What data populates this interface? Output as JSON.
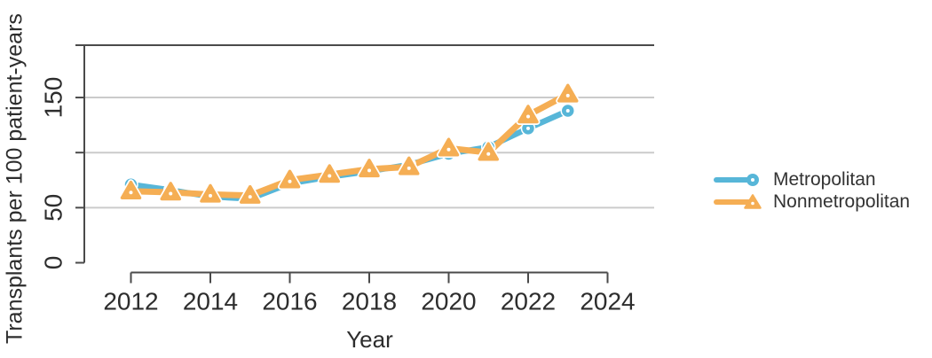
{
  "chart_data": {
    "type": "line",
    "title": "",
    "xlabel": "Year",
    "ylabel": "Transplants per 100 patient-years",
    "x": [
      2012,
      2013,
      2014,
      2015,
      2016,
      2017,
      2018,
      2019,
      2020,
      2021,
      2022,
      2023
    ],
    "series": [
      {
        "name": "Metropolitan",
        "marker": "circle",
        "color": "#57B6D8",
        "values": [
          71,
          66,
          60,
          58,
          72,
          78,
          83,
          89,
          99,
          105,
          122,
          138
        ]
      },
      {
        "name": "Nonmetropolitan",
        "marker": "triangle",
        "color": "#F5AE54",
        "values": [
          65,
          64,
          62,
          61,
          75,
          80,
          85,
          87,
          104,
          100,
          134,
          153
        ]
      }
    ],
    "xticks": [
      2012,
      2014,
      2016,
      2018,
      2020,
      2022,
      2024
    ],
    "yticks": [
      {
        "value": 0,
        "label": "0"
      },
      {
        "value": 50,
        "label": "50"
      },
      {
        "value": 100,
        "label": ""
      },
      {
        "value": 150,
        "label": "150"
      },
      {
        "value": 200,
        "label": ""
      }
    ],
    "ylim": [
      0,
      200
    ],
    "xlim": [
      2012,
      2024
    ],
    "grid": "horizontal",
    "legend_position": "right-middle"
  },
  "colors": {
    "metropolitan": "#57B6D8",
    "nonmetropolitan": "#F5AE54",
    "gridline": "#CBCBCB",
    "axis": "#4A4A4A",
    "text": "#2D2D2D",
    "marker_center_dot": "#FFFFFF"
  }
}
